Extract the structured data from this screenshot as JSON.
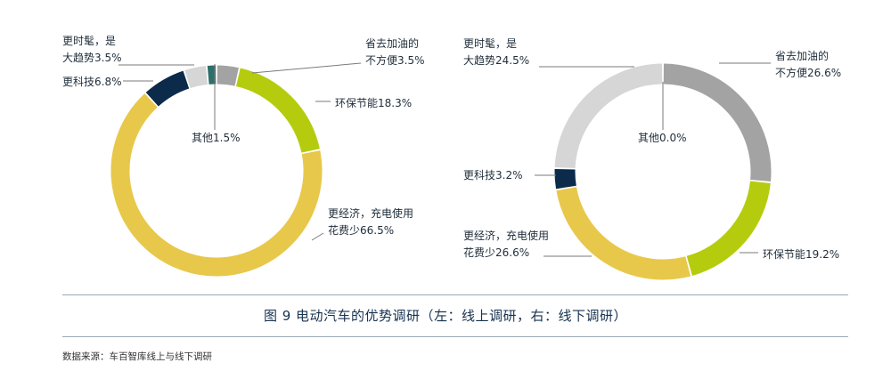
{
  "chart_data": [
    {
      "type": "donut",
      "title": "",
      "series": [
        {
          "label_lines": [
            "省去加油的",
            "不方便3.5%"
          ],
          "value": 3.5,
          "color": "#a3a3a3"
        },
        {
          "label_lines": [
            "环保节能18.3%"
          ],
          "value": 18.3,
          "color": "#b5cc0e"
        },
        {
          "label_lines": [
            "更经济，充电使用",
            "花费少66.5%"
          ],
          "value": 66.5,
          "color": "#e8c84a"
        },
        {
          "label_lines": [
            "更科技6.8%"
          ],
          "value": 6.8,
          "color": "#0c2a4a"
        },
        {
          "label_lines": [
            "更时髦，是",
            "大趋势3.5%"
          ],
          "value": 3.5,
          "color": "#d6d6d6"
        },
        {
          "label_lines": [
            "其他1.5%"
          ],
          "value": 1.5,
          "color": "#2f6f6a"
        }
      ]
    },
    {
      "type": "donut",
      "title": "",
      "series": [
        {
          "label_lines": [
            "省去加油的",
            "不方便26.6%"
          ],
          "value": 26.6,
          "color": "#a3a3a3"
        },
        {
          "label_lines": [
            "环保节能19.2%"
          ],
          "value": 19.2,
          "color": "#b5cc0e"
        },
        {
          "label_lines": [
            "更经济，充电使用",
            "花费少26.6%"
          ],
          "value": 26.6,
          "color": "#e8c84a"
        },
        {
          "label_lines": [
            "更科技3.2%"
          ],
          "value": 3.2,
          "color": "#0c2a4a"
        },
        {
          "label_lines": [
            "更时髦，是",
            "大趋势24.5%"
          ],
          "value": 24.5,
          "color": "#d6d6d6"
        },
        {
          "label_lines": [
            "其他0.0%"
          ],
          "value": 0.0,
          "color": "#2f6f6a"
        }
      ]
    }
  ],
  "caption": "图 9 电动汽车的优势调研（左：线上调研，右：线下调研）",
  "source": "数据来源：车百智库线上与线下调研"
}
